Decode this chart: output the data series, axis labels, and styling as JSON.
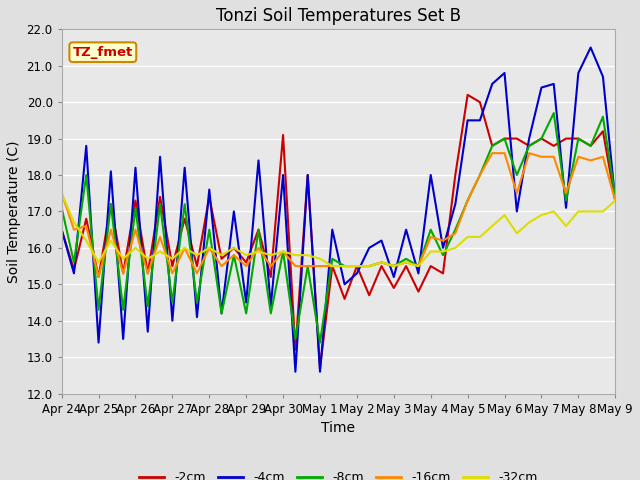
{
  "title": "Tonzi Soil Temperatures Set B",
  "xlabel": "Time",
  "ylabel": "Soil Temperature (C)",
  "ylim": [
    12.0,
    22.0
  ],
  "yticks": [
    12.0,
    13.0,
    14.0,
    15.0,
    16.0,
    17.0,
    18.0,
    19.0,
    20.0,
    21.0,
    22.0
  ],
  "xtick_labels": [
    "Apr 24",
    "Apr 25",
    "Apr 26",
    "Apr 27",
    "Apr 28",
    "Apr 29",
    "Apr 30",
    "May 1",
    "May 2",
    "May 3",
    "May 4",
    "May 5",
    "May 6",
    "May 7",
    "May 8",
    "May 9"
  ],
  "annotation_label": "TZ_fmet",
  "annotation_color": "#cc0000",
  "annotation_bg": "#ffffcc",
  "annotation_border": "#cc8800",
  "fig_bg_color": "#e0e0e0",
  "plot_bg_color": "#e8e8e8",
  "grid_color": "#ffffff",
  "series": {
    "-2cm": {
      "color": "#cc0000",
      "linewidth": 1.5,
      "data": [
        16.5,
        15.4,
        16.8,
        15.2,
        17.2,
        15.3,
        17.3,
        15.3,
        17.4,
        15.5,
        16.8,
        15.5,
        17.4,
        15.7,
        16.0,
        15.6,
        16.5,
        15.2,
        19.1,
        13.2,
        18.0,
        12.7,
        15.5,
        14.6,
        15.5,
        14.7,
        15.5,
        14.9,
        15.5,
        14.8,
        15.5,
        15.3,
        18.0,
        20.2,
        20.0,
        18.8,
        19.0,
        19.0,
        18.8,
        19.0,
        18.8,
        19.0,
        19.0,
        18.8,
        19.2,
        17.3
      ]
    },
    "-4cm": {
      "color": "#0000cc",
      "linewidth": 1.5,
      "data": [
        16.5,
        15.3,
        18.8,
        13.4,
        18.1,
        13.5,
        18.2,
        13.7,
        18.5,
        14.0,
        18.2,
        14.1,
        17.6,
        14.2,
        17.0,
        14.5,
        18.4,
        14.4,
        18.0,
        12.6,
        18.0,
        12.6,
        16.5,
        15.0,
        15.3,
        16.0,
        16.2,
        15.2,
        16.5,
        15.3,
        18.0,
        16.0,
        17.2,
        19.5,
        19.5,
        20.5,
        20.8,
        17.0,
        19.0,
        20.4,
        20.5,
        17.1,
        20.8,
        21.5,
        20.7,
        17.3
      ]
    },
    "-8cm": {
      "color": "#00aa00",
      "linewidth": 1.5,
      "data": [
        17.1,
        15.6,
        18.0,
        14.3,
        17.2,
        14.3,
        17.1,
        14.4,
        17.2,
        14.5,
        17.2,
        14.5,
        16.5,
        14.2,
        15.8,
        14.2,
        16.5,
        14.2,
        15.9,
        13.5,
        15.5,
        13.4,
        15.7,
        15.5,
        15.5,
        15.5,
        15.6,
        15.5,
        15.7,
        15.5,
        16.5,
        15.8,
        16.5,
        17.3,
        18.0,
        18.8,
        19.0,
        18.0,
        18.8,
        19.0,
        19.7,
        17.3,
        19.0,
        18.8,
        19.6,
        17.4
      ]
    },
    "-16cm": {
      "color": "#ff8800",
      "linewidth": 1.5,
      "data": [
        17.5,
        16.5,
        16.6,
        15.2,
        16.5,
        15.3,
        16.5,
        15.3,
        16.3,
        15.3,
        16.0,
        15.3,
        16.0,
        15.5,
        15.8,
        15.5,
        16.0,
        15.5,
        15.9,
        15.5,
        15.5,
        15.5,
        15.5,
        15.5,
        15.5,
        15.5,
        15.6,
        15.5,
        15.6,
        15.5,
        16.3,
        16.2,
        16.4,
        17.3,
        18.0,
        18.6,
        18.6,
        17.5,
        18.6,
        18.5,
        18.5,
        17.5,
        18.5,
        18.4,
        18.5,
        17.3
      ]
    },
    "-32cm": {
      "color": "#dddd00",
      "linewidth": 1.5,
      "data": [
        17.5,
        16.7,
        16.2,
        15.6,
        16.2,
        15.7,
        16.0,
        15.7,
        15.9,
        15.7,
        16.0,
        15.8,
        16.0,
        15.8,
        16.0,
        15.8,
        15.9,
        15.8,
        15.9,
        15.8,
        15.8,
        15.7,
        15.5,
        15.5,
        15.5,
        15.5,
        15.6,
        15.5,
        15.6,
        15.5,
        15.9,
        15.9,
        16.0,
        16.3,
        16.3,
        16.6,
        16.9,
        16.4,
        16.7,
        16.9,
        17.0,
        16.6,
        17.0,
        17.0,
        17.0,
        17.3
      ]
    }
  },
  "legend_entries": [
    "-2cm",
    "-4cm",
    "-8cm",
    "-16cm",
    "-32cm"
  ],
  "legend_colors": [
    "#cc0000",
    "#0000cc",
    "#00aa00",
    "#ff8800",
    "#dddd00"
  ],
  "title_fontsize": 12,
  "axis_label_fontsize": 10,
  "tick_fontsize": 8.5,
  "legend_fontsize": 9
}
